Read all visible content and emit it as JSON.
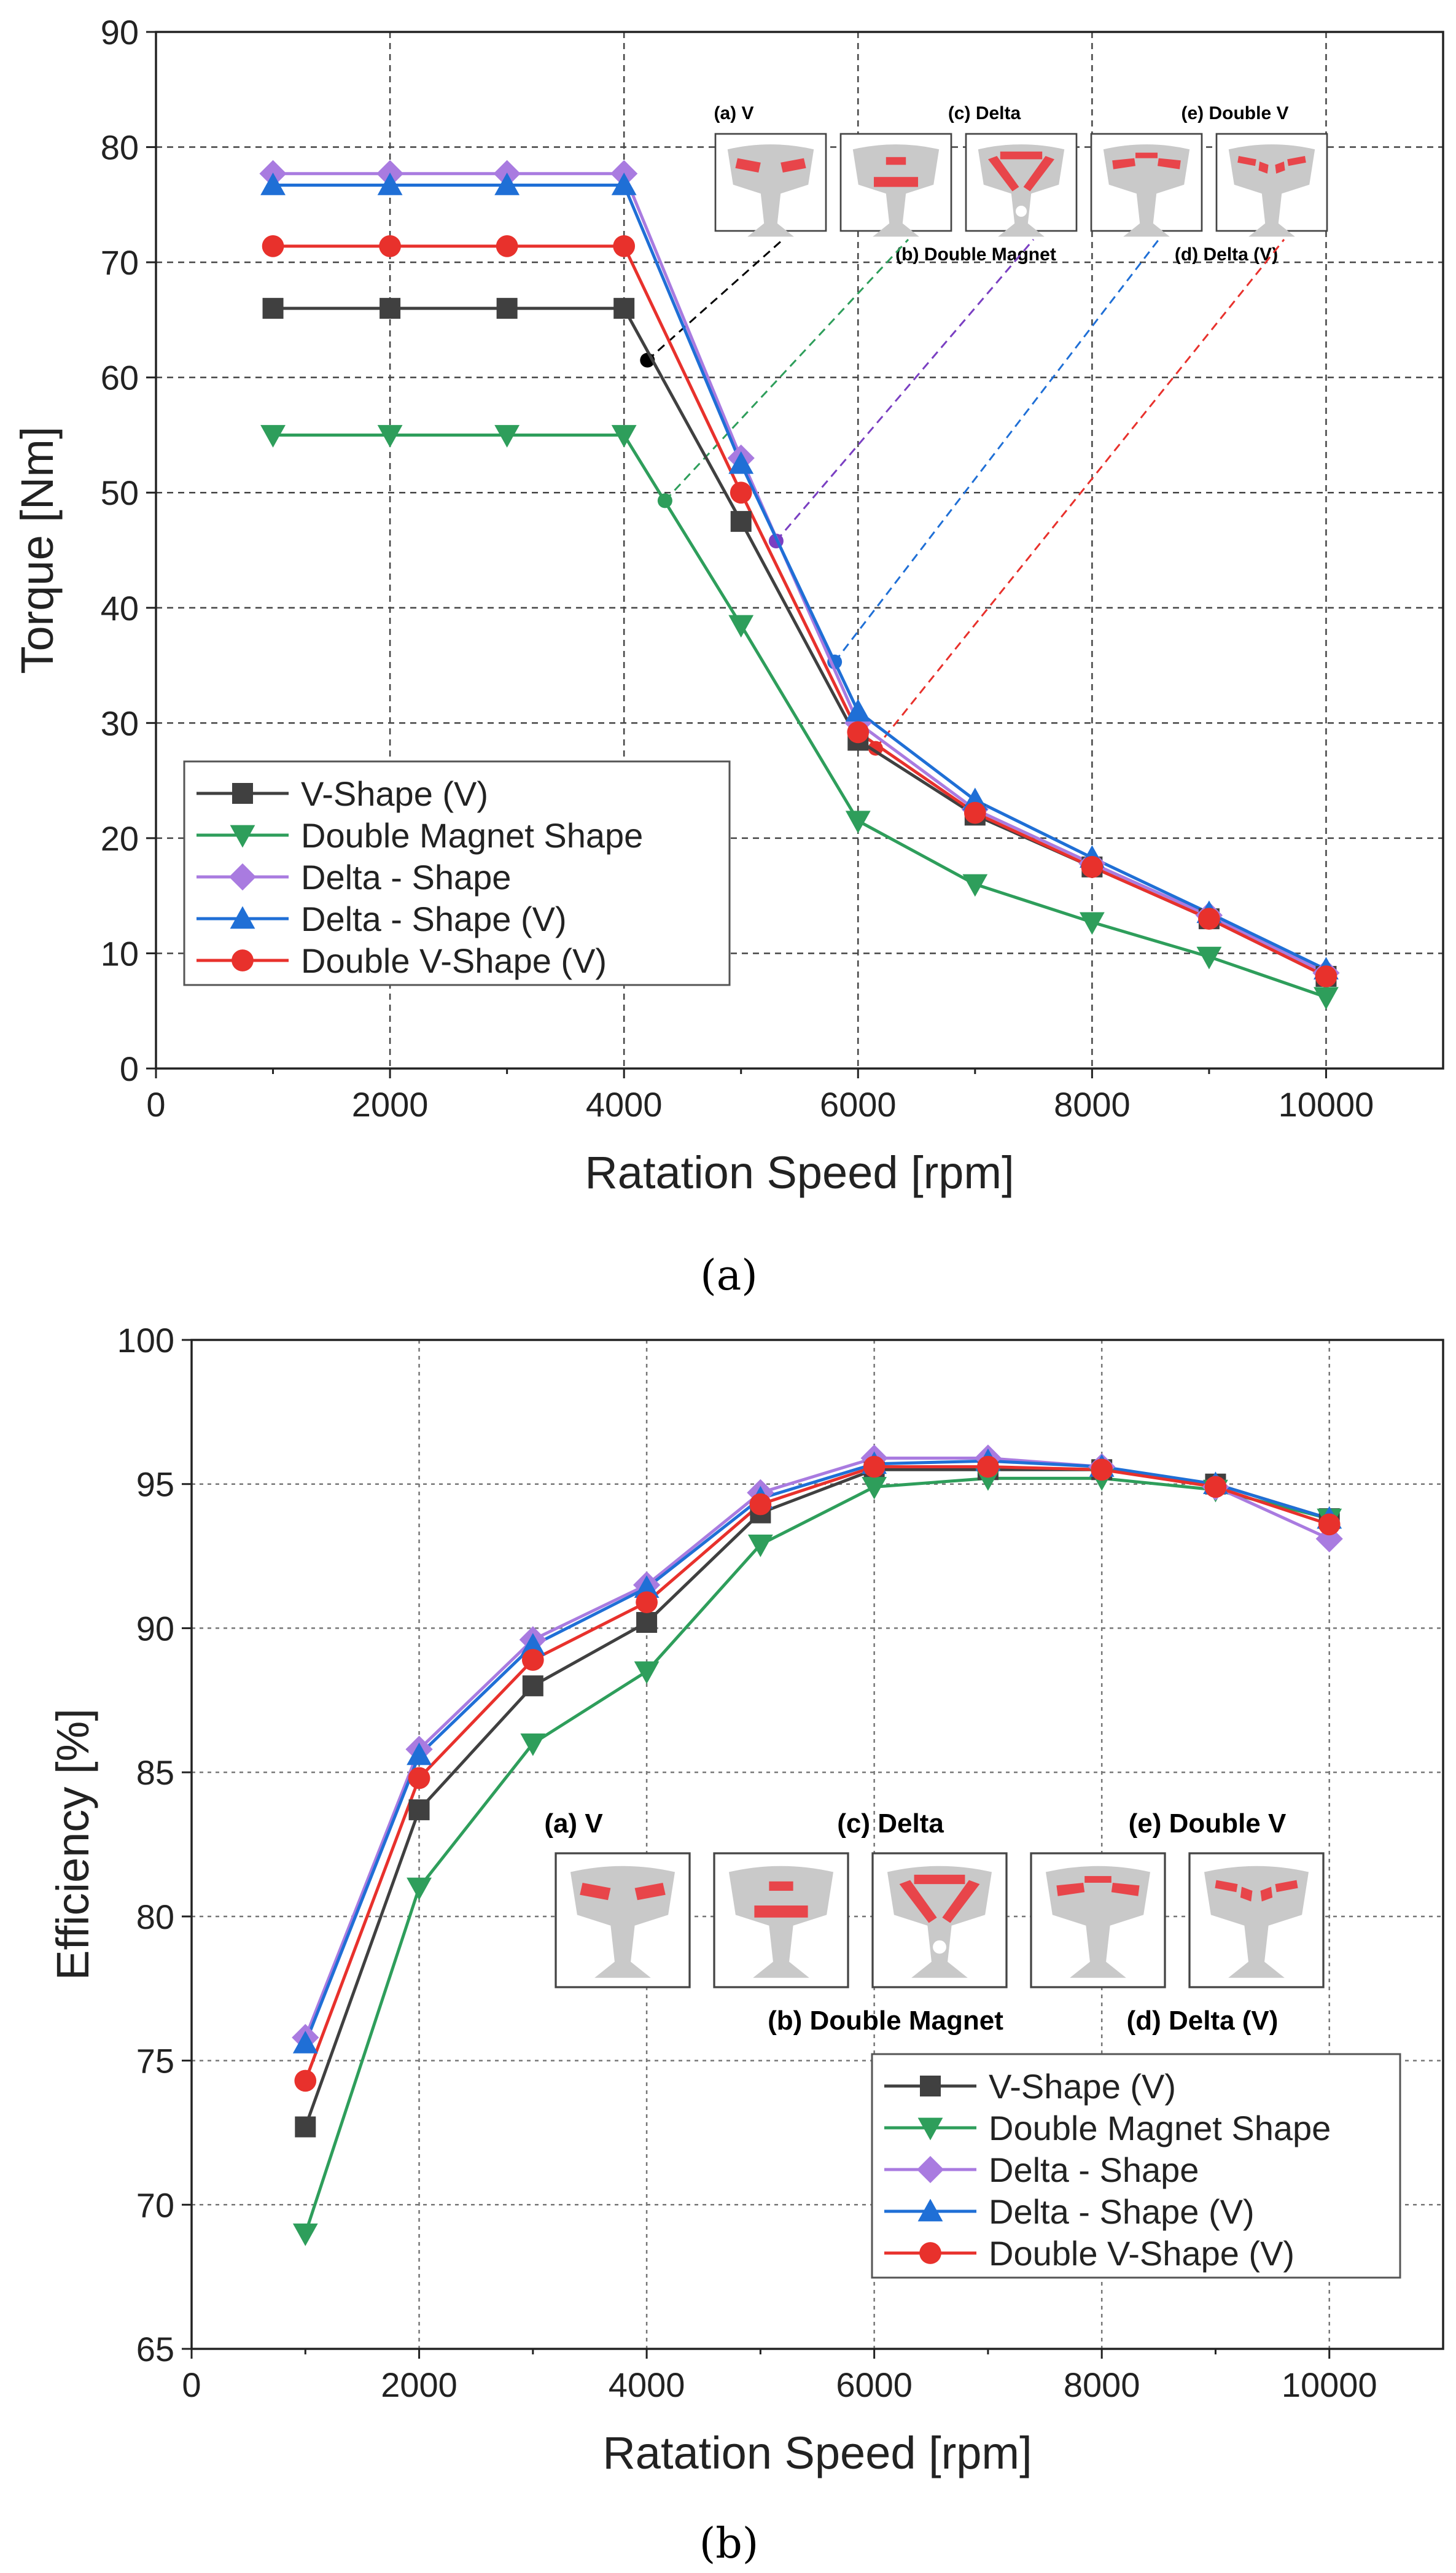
{
  "series_styles": [
    {
      "color": "#404040",
      "marker": "square"
    },
    {
      "color": "#2e9e5b",
      "marker": "tri-down"
    },
    {
      "color": "#a97be0",
      "marker": "diamond"
    },
    {
      "color": "#1f6fd6",
      "marker": "tri-up"
    },
    {
      "color": "#e8312c",
      "marker": "circle"
    }
  ],
  "magnet_color": "#e8454a",
  "rotor_color": "#c9c9c9",
  "chart_data": [
    {
      "type": "line",
      "caption": "(a)",
      "xlabel": "Ratation Speed [rpm]",
      "ylabel": "Torque [Nm]",
      "xlim": [
        0,
        11000
      ],
      "ylim": [
        0,
        90
      ],
      "xticks": [
        "0",
        "2000",
        "4000",
        "6000",
        "8000",
        "10000"
      ],
      "yticks": [
        "0",
        "10",
        "20",
        "30",
        "40",
        "50",
        "60",
        "70",
        "80",
        "90"
      ],
      "grid": true,
      "legend_position": "bottom-left",
      "x": [
        1000,
        2000,
        3000,
        4000,
        5000,
        6000,
        7000,
        8000,
        9000,
        10000
      ],
      "series": [
        {
          "name": "V-Shape (V)",
          "values": [
            66,
            66,
            66,
            66,
            47.5,
            28.5,
            22,
            17.5,
            13,
            8
          ]
        },
        {
          "name": "Double Magnet Shape",
          "values": [
            55,
            55,
            55,
            55,
            38.5,
            21.5,
            16,
            12.7,
            9.7,
            6.2
          ]
        },
        {
          "name": "Delta - Shape",
          "values": [
            77.7,
            77.7,
            77.7,
            77.7,
            53,
            30,
            22.5,
            17.8,
            13.3,
            8.3
          ]
        },
        {
          "name": "Delta - Shape (V)",
          "values": [
            76.7,
            76.7,
            76.7,
            76.7,
            52.5,
            31,
            23.3,
            18.3,
            13.5,
            8.6
          ]
        },
        {
          "name": "Double V-Shape (V)",
          "values": [
            71.4,
            71.4,
            71.4,
            71.4,
            50,
            29.2,
            22.2,
            17.5,
            13,
            8
          ]
        }
      ],
      "base_points": [
        {
          "x": 4200,
          "y": 61.5
        },
        {
          "x": 4350,
          "y": 49.3
        },
        {
          "x": 5300,
          "y": 45.8
        },
        {
          "x": 5800,
          "y": 35.3
        },
        {
          "x": 6150,
          "y": 27.8
        }
      ],
      "insets": [
        {
          "label": "(a) V",
          "kind": "V"
        },
        {
          "label": "(b) Double Magnet",
          "kind": "DM"
        },
        {
          "label": "(c) Delta",
          "kind": "Delta"
        },
        {
          "label": "(d) Delta (V)",
          "kind": "DeltaV"
        },
        {
          "label": "(e) Double V",
          "kind": "DoubleV"
        }
      ]
    },
    {
      "type": "line",
      "caption": "(b)",
      "xlabel": "Ratation Speed [rpm]",
      "ylabel": "Efficiency [%]",
      "xlim": [
        0,
        11000
      ],
      "ylim": [
        65,
        100
      ],
      "xticks": [
        "0",
        "2000",
        "4000",
        "6000",
        "8000",
        "10000"
      ],
      "yticks": [
        "65",
        "70",
        "75",
        "80",
        "85",
        "90",
        "95",
        "100"
      ],
      "grid": true,
      "legend_position": "bottom-right",
      "x": [
        1000,
        2000,
        3000,
        4000,
        5000,
        6000,
        7000,
        8000,
        9000,
        10000
      ],
      "series": [
        {
          "name": "V-Shape (V)",
          "values": [
            72.7,
            83.7,
            88,
            90.2,
            94,
            95.5,
            95.5,
            95.5,
            95,
            93.8
          ]
        },
        {
          "name": "Double Magnet Shape",
          "values": [
            69,
            81,
            86,
            88.5,
            92.9,
            94.9,
            95.2,
            95.2,
            94.8,
            93.8
          ]
        },
        {
          "name": "Delta - Shape",
          "values": [
            75.8,
            85.8,
            89.6,
            91.5,
            94.7,
            95.9,
            95.9,
            95.6,
            94.9,
            93.1
          ]
        },
        {
          "name": "Delta - Shape (V)",
          "values": [
            75.6,
            85.6,
            89.4,
            91.4,
            94.5,
            95.7,
            95.8,
            95.6,
            95,
            93.8
          ]
        },
        {
          "name": "Double V-Shape (V)",
          "values": [
            74.3,
            84.8,
            88.9,
            90.9,
            94.3,
            95.6,
            95.6,
            95.5,
            94.9,
            93.6
          ]
        }
      ],
      "insets": [
        {
          "label": "(a) V",
          "kind": "V"
        },
        {
          "label": "(b) Double Magnet",
          "kind": "DM"
        },
        {
          "label": "(c) Delta",
          "kind": "Delta"
        },
        {
          "label": "(d) Delta (V)",
          "kind": "DeltaV"
        },
        {
          "label": "(e) Double V",
          "kind": "DoubleV"
        }
      ]
    }
  ]
}
